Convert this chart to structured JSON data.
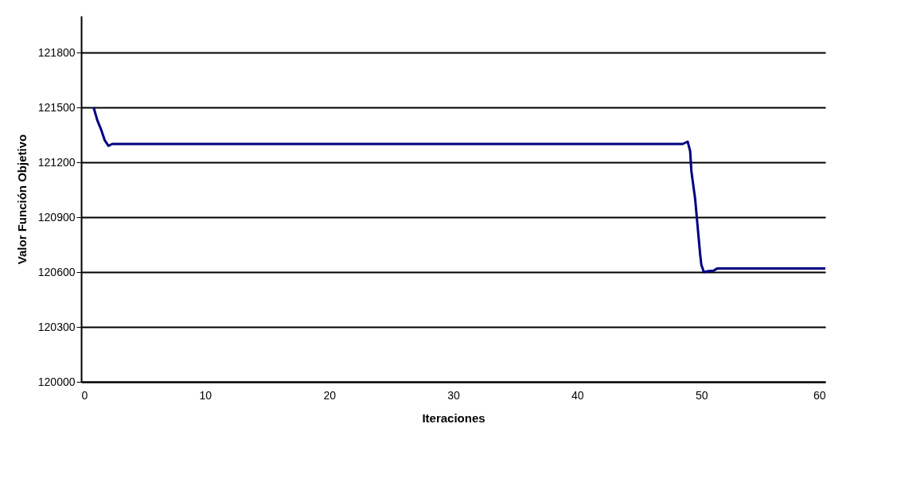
{
  "chart_data": {
    "type": "line",
    "xlabel": "Iteraciones",
    "ylabel": "Valor Función Objetivo",
    "x": [
      1,
      1.3,
      1.6,
      1.9,
      2.2,
      2.5,
      3,
      10,
      30,
      48.5,
      48.9,
      49.1,
      49.2,
      49.5,
      49.7,
      49.9,
      50.0,
      50.2,
      50.6,
      51.0,
      51.3,
      60
    ],
    "series": [
      {
        "color": "#000080",
        "values": [
          121500,
          121430,
          121380,
          121320,
          121290,
          121300,
          121300,
          121300,
          121300,
          121300,
          121313,
          121260,
          121150,
          121000,
          120850,
          120700,
          120640,
          120600,
          120605,
          120608,
          120620,
          120620
        ]
      }
    ],
    "xlim": [
      0,
      60
    ],
    "xticks": [
      0,
      10,
      20,
      30,
      40,
      50,
      60
    ],
    "ylim": [
      120000,
      122000
    ],
    "yticks": [
      120000,
      120300,
      120600,
      120900,
      121200,
      121500,
      121800
    ],
    "grid": "y",
    "marker": "none",
    "line_style": "solid",
    "legend": false
  }
}
